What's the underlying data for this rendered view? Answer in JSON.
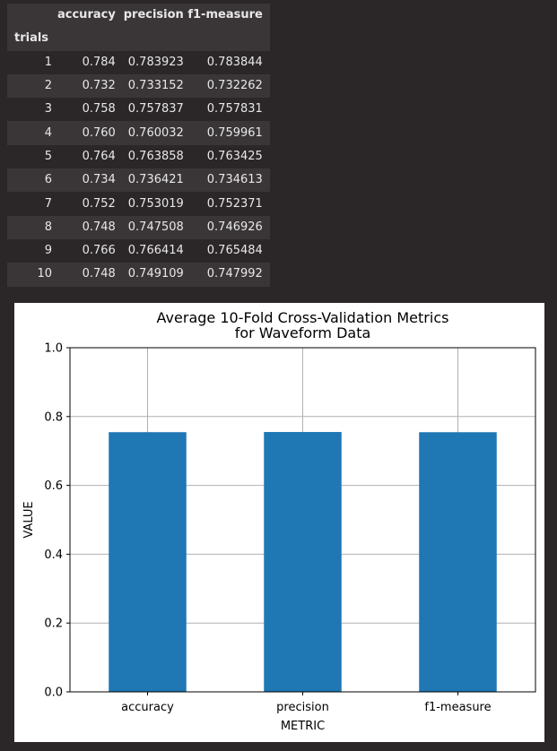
{
  "table": {
    "columns": [
      "accuracy",
      "precision",
      "f1-measure"
    ],
    "index_name": "trials",
    "rows": [
      {
        "trial": "1",
        "accuracy": "0.784",
        "precision": "0.783923",
        "f1": "0.783844"
      },
      {
        "trial": "2",
        "accuracy": "0.732",
        "precision": "0.733152",
        "f1": "0.732262"
      },
      {
        "trial": "3",
        "accuracy": "0.758",
        "precision": "0.757837",
        "f1": "0.757831"
      },
      {
        "trial": "4",
        "accuracy": "0.760",
        "precision": "0.760032",
        "f1": "0.759961"
      },
      {
        "trial": "5",
        "accuracy": "0.764",
        "precision": "0.763858",
        "f1": "0.763425"
      },
      {
        "trial": "6",
        "accuracy": "0.734",
        "precision": "0.736421",
        "f1": "0.734613"
      },
      {
        "trial": "7",
        "accuracy": "0.752",
        "precision": "0.753019",
        "f1": "0.752371"
      },
      {
        "trial": "8",
        "accuracy": "0.748",
        "precision": "0.747508",
        "f1": "0.746926"
      },
      {
        "trial": "9",
        "accuracy": "0.766",
        "precision": "0.766414",
        "f1": "0.765484"
      },
      {
        "trial": "10",
        "accuracy": "0.748",
        "precision": "0.749109",
        "f1": "0.747992"
      }
    ]
  },
  "chart_data": {
    "type": "bar",
    "title": "Average 10-Fold Cross-Validation Metrics\nfor Waveform Data",
    "categories": [
      "accuracy",
      "precision",
      "f1-measure"
    ],
    "values": [
      0.7546,
      0.7551,
      0.7545
    ],
    "xlabel": "METRIC",
    "ylabel": "VALUE",
    "ylim": [
      0.0,
      1.0
    ],
    "yticks": [
      "0.0",
      "0.2",
      "0.4",
      "0.6",
      "0.8",
      "1.0"
    ],
    "grid": true,
    "bar_color": "#1f77b4"
  }
}
